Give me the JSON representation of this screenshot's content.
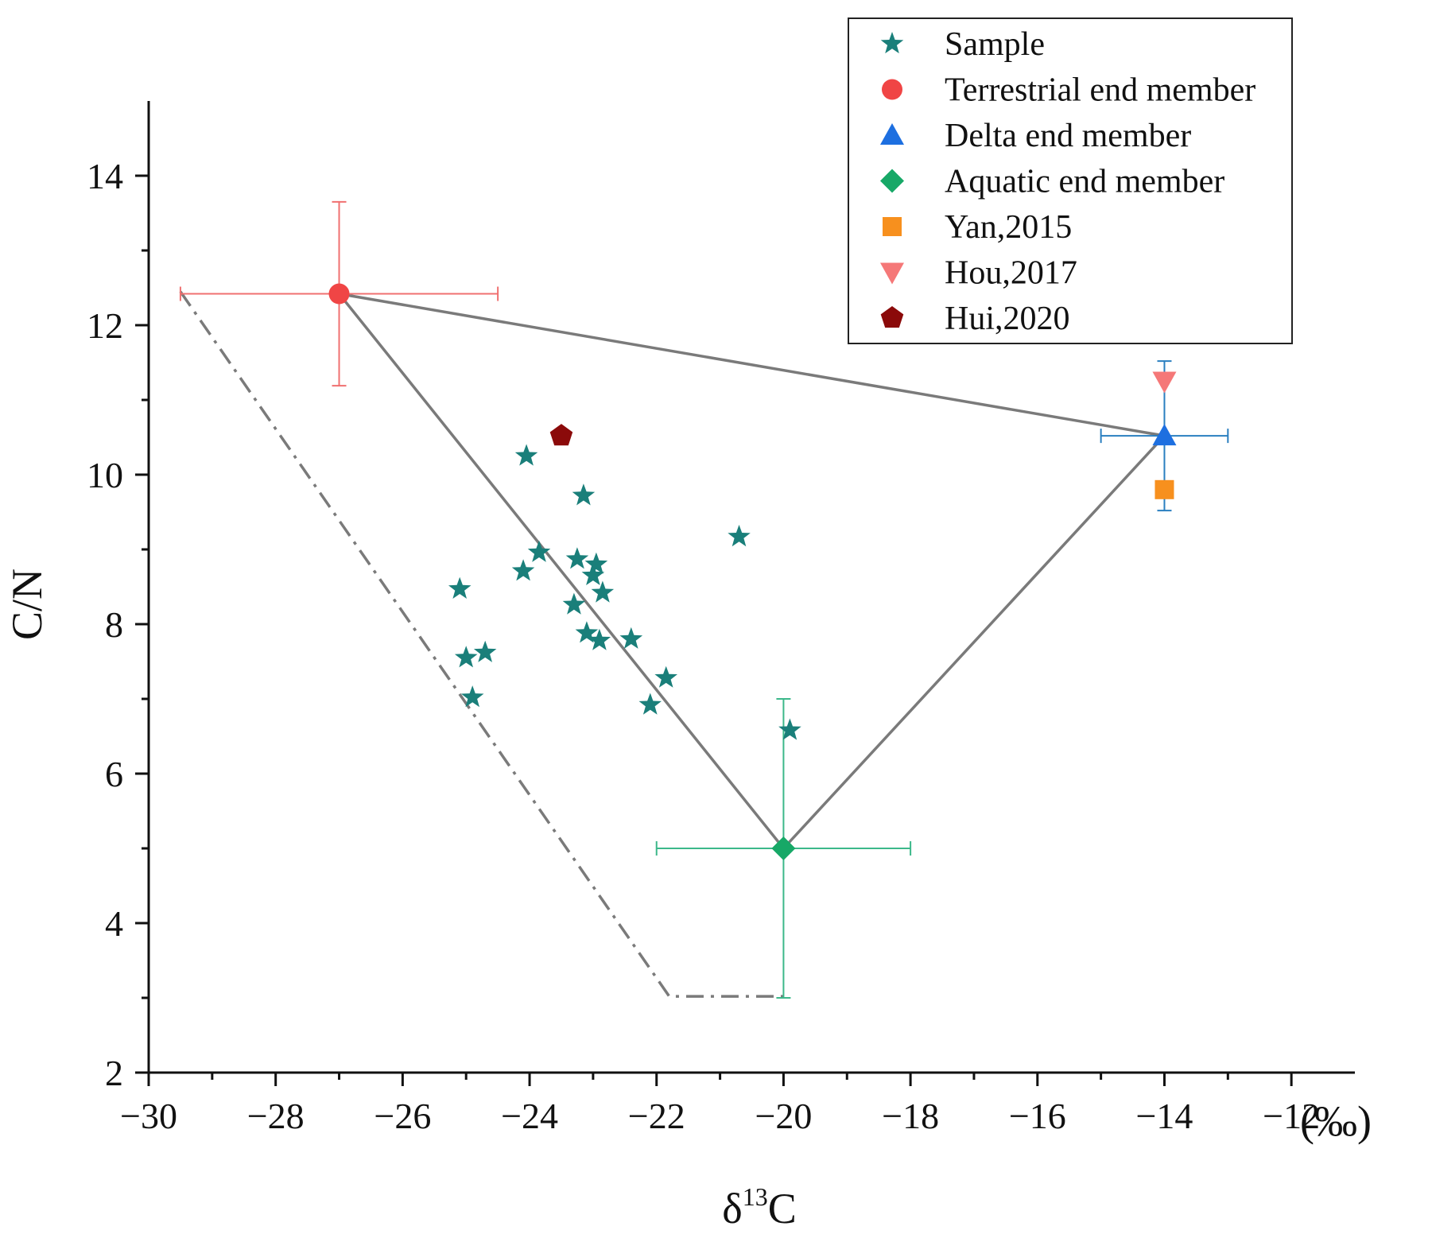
{
  "chart_data": {
    "type": "scatter",
    "xlabel_main": "δ",
    "xlabel_sup": "13",
    "xlabel_tail": "C",
    "ylabel": "C/N",
    "unit_label": "(‰)",
    "xlim": [
      -30,
      -11
    ],
    "ylim": [
      2,
      15
    ],
    "x_ticks": [
      -30,
      -28,
      -26,
      -24,
      -22,
      -20,
      -18,
      -16,
      -14,
      -12
    ],
    "x_tick_labels": [
      "−30",
      "−28",
      "−26",
      "−24",
      "−22",
      "−20",
      "−18",
      "−16",
      "−14",
      "−12"
    ],
    "y_ticks": [
      2,
      4,
      6,
      8,
      10,
      12,
      14
    ],
    "y_tick_labels": [
      "2",
      "4",
      "6",
      "8",
      "10",
      "12",
      "14"
    ],
    "series": [
      {
        "name": "Sample",
        "marker": "star",
        "color": "#1a7f7a",
        "points": [
          {
            "x": -25.1,
            "y": 8.47
          },
          {
            "x": -25.0,
            "y": 7.55
          },
          {
            "x": -24.7,
            "y": 7.62
          },
          {
            "x": -24.9,
            "y": 7.02
          },
          {
            "x": -24.1,
            "y": 8.71
          },
          {
            "x": -24.05,
            "y": 10.25
          },
          {
            "x": -23.85,
            "y": 8.96
          },
          {
            "x": -23.3,
            "y": 8.26
          },
          {
            "x": -23.25,
            "y": 8.87
          },
          {
            "x": -23.15,
            "y": 9.72
          },
          {
            "x": -23.1,
            "y": 7.88
          },
          {
            "x": -23.0,
            "y": 8.65
          },
          {
            "x": -22.95,
            "y": 8.8
          },
          {
            "x": -22.9,
            "y": 7.78
          },
          {
            "x": -22.85,
            "y": 8.42
          },
          {
            "x": -22.4,
            "y": 7.8
          },
          {
            "x": -22.1,
            "y": 6.92
          },
          {
            "x": -21.85,
            "y": 7.28
          },
          {
            "x": -20.7,
            "y": 9.17
          },
          {
            "x": -19.9,
            "y": 6.58
          }
        ]
      },
      {
        "name": "Terrestrial end member",
        "marker": "circle",
        "color": "#f04545",
        "points": [
          {
            "x": -27.0,
            "y": 12.42,
            "xerr": 2.5,
            "yerr": 1.23
          }
        ]
      },
      {
        "name": "Delta end member",
        "marker": "triangle-up",
        "color": "#1d6fe0",
        "points": [
          {
            "x": -14.0,
            "y": 10.52,
            "xerr": 1.0,
            "yerr": 1.0
          }
        ]
      },
      {
        "name": "Aquatic end member",
        "marker": "diamond",
        "color": "#17a867",
        "points": [
          {
            "x": -20.0,
            "y": 5.0,
            "xerr": 2.0,
            "yerr": 2.0
          }
        ]
      },
      {
        "name": "Yan,2015",
        "marker": "square",
        "color": "#f7901e",
        "points": [
          {
            "x": -14.0,
            "y": 9.8
          }
        ]
      },
      {
        "name": "Hou,2017",
        "marker": "triangle-down",
        "color": "#f57878",
        "points": [
          {
            "x": -14.0,
            "y": 11.25
          }
        ]
      },
      {
        "name": "Hui,2020",
        "marker": "pentagon",
        "color": "#8b0a0a",
        "points": [
          {
            "x": -23.5,
            "y": 10.52
          }
        ]
      }
    ],
    "mixing_triangle": [
      {
        "x": -27.0,
        "y": 12.42
      },
      {
        "x": -14.0,
        "y": 10.52
      },
      {
        "x": -20.0,
        "y": 5.0
      }
    ],
    "dashdot_boundary": [
      {
        "x": -29.5,
        "y": 12.45
      },
      {
        "x": -21.8,
        "y": 3.02
      },
      {
        "x": -20.0,
        "y": 3.02
      }
    ],
    "line_color": "#7a7a7a",
    "errorbar_colors": {
      "Terrestrial end member": "#f07070",
      "Delta end member": "#2a7fc0",
      "Aquatic end member": "#3cb88a"
    },
    "legend": {
      "position": "top-right",
      "entries": [
        "Sample",
        "Terrestrial end member",
        "Delta end member",
        "Aquatic end member",
        "Yan,2015",
        "Hou,2017",
        "Hui,2020"
      ]
    }
  }
}
